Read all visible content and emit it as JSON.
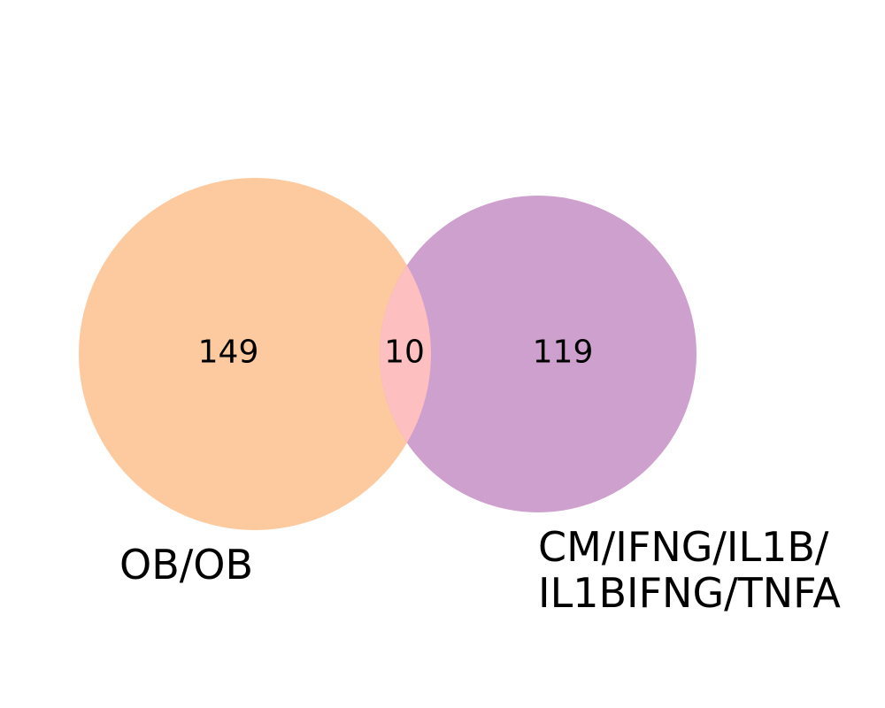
{
  "chart_data": {
    "type": "venn",
    "sets": [
      {
        "id": "left",
        "label_lines": [
          "OB/OB"
        ],
        "only_count": "149",
        "color": "#fdca9f"
      },
      {
        "id": "right",
        "label_lines": [
          "CM/IFNG/IL1B/",
          "IL1BIFNG/TNFA"
        ],
        "only_count": "119",
        "color": "#cea0cd"
      }
    ],
    "intersection": {
      "count": "10",
      "color": "#fdbfbf"
    }
  }
}
